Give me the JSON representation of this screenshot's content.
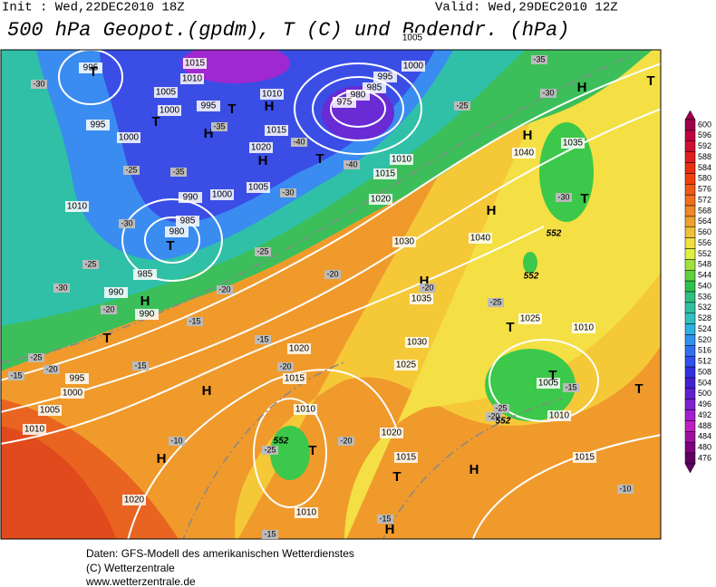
{
  "header": {
    "init": "Init : Wed,22DEC2010 18Z",
    "valid": "Valid: Wed,29DEC2010 12Z",
    "title": "500 hPa Geopot.(gpdm), T (C) und Bodendr. (hPa)"
  },
  "pressure_labels": [
    995,
    1015,
    1010,
    1005,
    1000,
    995,
    1010,
    1015,
    1020,
    1005,
    1000,
    990,
    985,
    980,
    985,
    990,
    990,
    995,
    1000,
    1010,
    995,
    1000,
    1005,
    1010,
    1020,
    1020,
    1015,
    1010,
    1015,
    1010,
    1020,
    1025,
    1030,
    1035,
    1040,
    1030,
    1040,
    1035,
    1025,
    1010,
    1005,
    1010,
    1015,
    1015,
    1020,
    1010,
    1005,
    1000,
    995,
    985,
    980,
    975
  ],
  "centers": [
    "H",
    "H",
    "H",
    "H",
    "H",
    "H",
    "H",
    "H",
    "H",
    "H",
    "H",
    "H",
    "T",
    "T",
    "T",
    "T",
    "T",
    "T",
    "T",
    "T",
    "T",
    "T",
    "T",
    "T",
    "T"
  ],
  "temperature_labels": [
    -30,
    -25,
    -35,
    -30,
    -25,
    -30,
    -20,
    -25,
    -15,
    -20,
    -15,
    -15,
    -20,
    -25,
    -15,
    -20,
    -20,
    -25,
    -15,
    -15,
    -10,
    -10,
    -15,
    -20,
    -25,
    -20,
    -25,
    -20,
    -30,
    -30,
    -35,
    -25,
    -30,
    -35,
    -40,
    -40
  ],
  "height_labels": [
    552,
    552,
    552,
    552
  ],
  "colorbar": {
    "labels": [
      600,
      596,
      592,
      588,
      584,
      580,
      576,
      572,
      568,
      564,
      560,
      556,
      552,
      548,
      544,
      540,
      536,
      532,
      528,
      524,
      520,
      516,
      512,
      508,
      504,
      500,
      496,
      492,
      488,
      484,
      480,
      476
    ],
    "colors": [
      "#a0004a",
      "#c00040",
      "#d01030",
      "#e02020",
      "#e83010",
      "#f04010",
      "#f05818",
      "#f07020",
      "#f08828",
      "#f0a030",
      "#f0c038",
      "#f0e040",
      "#e0f040",
      "#a0e040",
      "#60d040",
      "#30c050",
      "#30c080",
      "#30c0a0",
      "#30c0c0",
      "#30b0e0",
      "#3090f0",
      "#3070f0",
      "#3050f0",
      "#3030e0",
      "#4020d0",
      "#6020d0",
      "#8020d0",
      "#a020d0",
      "#c020c0",
      "#a010a0",
      "#800080",
      "#600060"
    ]
  },
  "footer": [
    "Daten: GFS-Modell des amerikanischen Wetterdienstes",
    "(C) Wetterzentrale",
    "www.wetterzentrale.de"
  ]
}
